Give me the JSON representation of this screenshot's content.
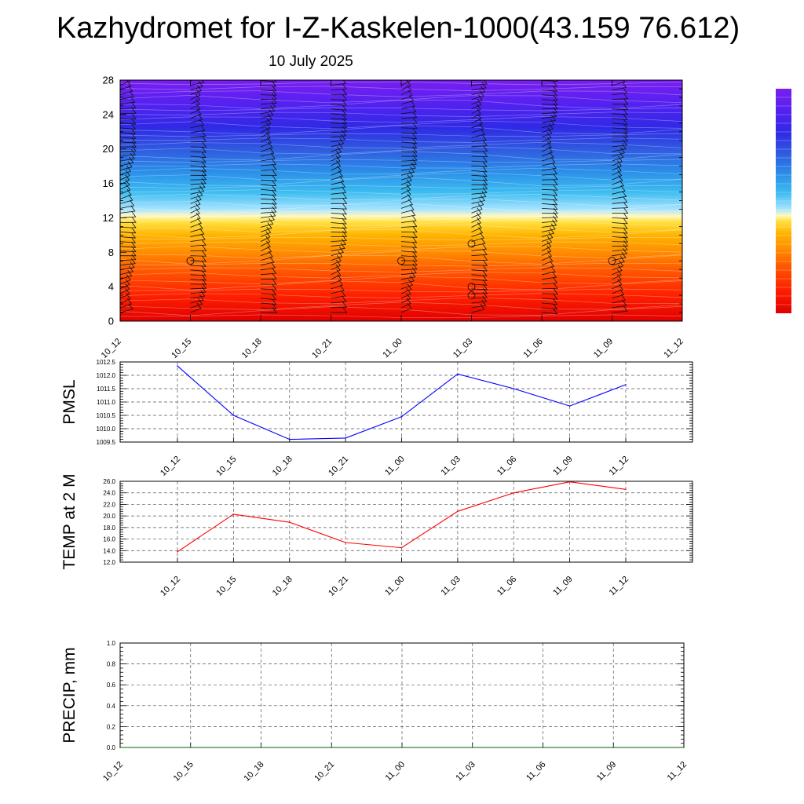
{
  "title": "Kazhydromet for I-Z-Kaskelen-1000(43.159 76.612)",
  "subtitle": "10 July 2025",
  "colors": {
    "pmsl_line": "#0000ff",
    "temp_line": "#ff0000",
    "precip_line": "#006400"
  },
  "chart_data": [
    {
      "type": "heatmap",
      "name": "vertical-profile",
      "xlabel": "",
      "ylabel": "",
      "x_tick_labels": [
        "10_12",
        "10_15",
        "10_18",
        "10_21",
        "11_00",
        "11_03",
        "11_06",
        "11_09",
        "11_12"
      ],
      "y_ticks": [
        0,
        4,
        8,
        12,
        16,
        20,
        24,
        28
      ],
      "ylim": [
        0,
        28
      ],
      "colormap_stops": [
        {
          "level": 0,
          "color": "#e00000"
        },
        {
          "level": 3,
          "color": "#ff2000"
        },
        {
          "level": 6,
          "color": "#ff5a00"
        },
        {
          "level": 8,
          "color": "#ff8c00"
        },
        {
          "level": 10,
          "color": "#ffb400"
        },
        {
          "level": 11.5,
          "color": "#ffe040"
        },
        {
          "level": 12.2,
          "color": "#fff8c0"
        },
        {
          "level": 13,
          "color": "#a8e4ff"
        },
        {
          "level": 15,
          "color": "#3cbcf0"
        },
        {
          "level": 17.5,
          "color": "#2a8ce8"
        },
        {
          "level": 20,
          "color": "#2f5ae0"
        },
        {
          "level": 22.5,
          "color": "#2f2ae6"
        },
        {
          "level": 25,
          "color": "#5022f0"
        },
        {
          "level": 28,
          "color": "#7a1ef0"
        }
      ],
      "calm_markers": [
        {
          "x": 1,
          "y": 7
        },
        {
          "x": 4,
          "y": 7
        },
        {
          "x": 5,
          "y": 9
        },
        {
          "x": 5,
          "y": 4
        },
        {
          "x": 5,
          "y": 3
        },
        {
          "x": 7,
          "y": 7
        }
      ],
      "grid": false
    },
    {
      "type": "line",
      "name": "pmsl",
      "ylabel": "PMSL",
      "x": [
        "10_12",
        "10_15",
        "10_18",
        "10_21",
        "11_00",
        "11_03",
        "11_06",
        "11_09",
        "11_12"
      ],
      "series": [
        {
          "values": [
            1012.35,
            1010.5,
            1009.6,
            1009.65,
            1010.45,
            1012.05,
            1011.5,
            1010.85,
            1011.65
          ]
        }
      ],
      "y_ticks": [
        1009.5,
        1010.0,
        1010.5,
        1011.0,
        1011.5,
        1012.0,
        1012.5
      ],
      "y_tick_labels": [
        "1009.5",
        "1010.0",
        "1010.5",
        "1011.0",
        "1011.5",
        "1012.0",
        "1012.5"
      ],
      "ylim": [
        1009.5,
        1012.5
      ],
      "grid": true
    },
    {
      "type": "line",
      "name": "temp",
      "ylabel": "TEMP at 2 M",
      "x": [
        "10_12",
        "10_15",
        "10_18",
        "10_21",
        "11_00",
        "11_03",
        "11_06",
        "11_09",
        "11_12"
      ],
      "series": [
        {
          "values": [
            13.8,
            20.3,
            18.9,
            15.4,
            14.5,
            20.8,
            24.0,
            25.9,
            24.6
          ]
        }
      ],
      "y_ticks": [
        12,
        14,
        16,
        18,
        20,
        22,
        24,
        26
      ],
      "y_tick_labels": [
        "12.0",
        "14.0",
        "16.0",
        "18.0",
        "20.0",
        "22.0",
        "24.0",
        "26.0"
      ],
      "ylim": [
        12,
        26
      ],
      "grid": true
    },
    {
      "type": "line",
      "name": "precip",
      "ylabel": "PRECIP, mm",
      "x": [
        "10_12",
        "10_15",
        "10_18",
        "10_21",
        "11_00",
        "11_03",
        "11_06",
        "11_09",
        "11_12"
      ],
      "series": [
        {
          "values": [
            0,
            0,
            0,
            0,
            0,
            0,
            0,
            0,
            0
          ]
        }
      ],
      "y_ticks": [
        0,
        0.2,
        0.4,
        0.6,
        0.8,
        1.0
      ],
      "y_tick_labels": [
        "0.0",
        "0.2",
        "0.4",
        "0.6",
        "0.8",
        "1.0"
      ],
      "ylim": [
        0,
        1
      ],
      "grid": true
    }
  ]
}
